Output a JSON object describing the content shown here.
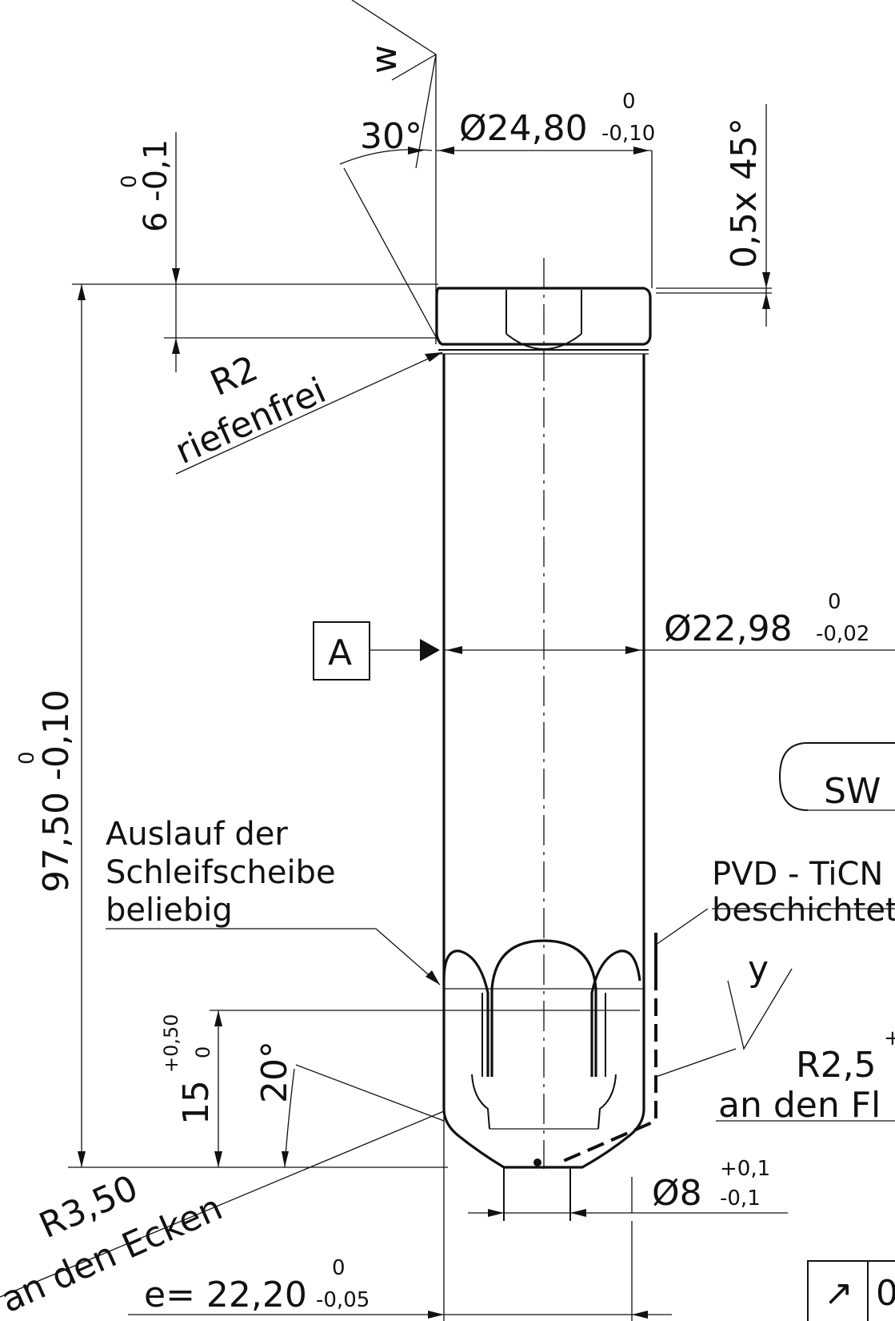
{
  "annotations": {
    "surface_w": "w",
    "angle_30": "30°",
    "dia_head": "Ø24,80",
    "dia_head_tol_upper": "0",
    "dia_head_tol_lower": "-0,10",
    "chamfer": "0,5x 45°",
    "head_height": "6 -0,1",
    "head_height_upper": "0",
    "radius_r2": "R2",
    "riefenfrei": "riefenfrei",
    "datum_a": "A",
    "dia_shaft": "Ø22,98",
    "dia_shaft_upper": "0",
    "dia_shaft_lower": "-0,02",
    "length": "97,50 -0,10",
    "length_upper": "0",
    "sw_label": "SW",
    "auslauf_line1": "Auslauf der",
    "auslauf_line2": "Schleifscheibe",
    "auslauf_line3": "beliebig",
    "pvd_line1": "PVD - TiCN",
    "pvd_line2": "beschichtet",
    "surface_y": "y",
    "height_15": "15",
    "height_15_upper": "+0,50",
    "height_15_lower": "0",
    "angle_20": "20°",
    "radius_r25": "R2,5",
    "radius_r25_tol": "+",
    "flanks": "an den Fl",
    "radius_r350": "R3,50",
    "corners": "an den Ecken",
    "dia_pin": "Ø8",
    "dia_pin_upper": "+0,1",
    "dia_pin_lower": "-0,1",
    "across_corners": "e= 22,20",
    "across_corners_upper": "0",
    "across_corners_lower": "-0,05",
    "gdt_symbol": "↗",
    "gdt_value": "0"
  }
}
